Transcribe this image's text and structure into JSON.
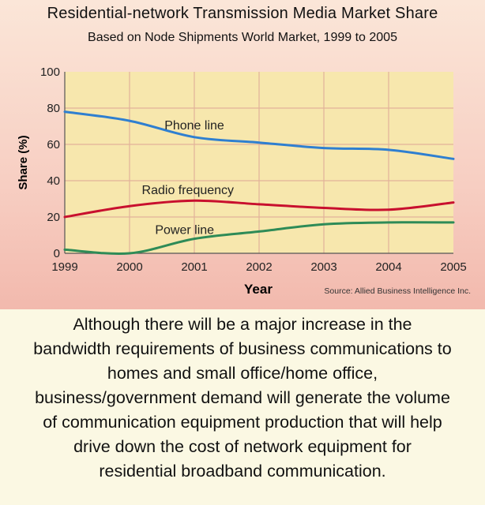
{
  "chart_data": {
    "type": "line",
    "title": "Residential-network Transmission Media Market Share",
    "subtitle": "Based on Node Shipments World Market, 1999 to 2005",
    "xlabel": "Year",
    "ylabel": "Share (%)",
    "source": "Source: Allied Business Intelligence Inc.",
    "x": [
      1999,
      2000,
      2001,
      2002,
      2003,
      2004,
      2005
    ],
    "x_tick_labels": [
      "1999",
      "2000",
      "2001",
      "2002",
      "2003",
      "2004",
      "2005"
    ],
    "y_tick_labels": [
      "0",
      "20",
      "40",
      "60",
      "80",
      "100"
    ],
    "ylim": [
      0,
      100
    ],
    "grid": true,
    "series": [
      {
        "name": "Phone line",
        "values": [
          78,
          73,
          64,
          61,
          58,
          57,
          52
        ],
        "color": "#2f7fd0"
      },
      {
        "name": "Radio frequency",
        "values": [
          20,
          26,
          29,
          27,
          25,
          24,
          28
        ],
        "color": "#c8102e"
      },
      {
        "name": "Power line",
        "values": [
          2,
          0,
          8,
          12,
          16,
          17,
          17
        ],
        "color": "#2e8b57"
      }
    ]
  },
  "caption": {
    "lines": [
      "Although there will be a major increase in the",
      "bandwidth requirements of business communications to",
      "homes and small office/home office,",
      "business/government demand will generate the volume",
      "of communication equipment production that will help",
      "drive down the cost of network equipment for",
      "residential broadband communication."
    ]
  },
  "colors": {
    "plot_bg": "#f7e7ad",
    "grid": "#e2b29a",
    "axis": "#555555"
  }
}
